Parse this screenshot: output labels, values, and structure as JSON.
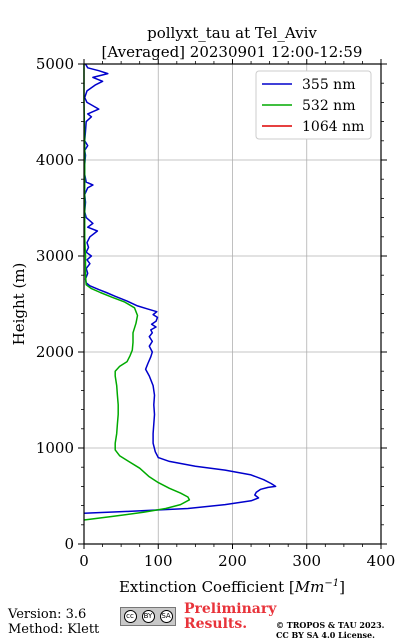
{
  "chart_data": {
    "type": "line",
    "title": "pollyxt_tau at Tel_Aviv",
    "subtitle": "[Averaged] 20230901 12:00-12:59",
    "xlabel": "Extinction Coefficient [",
    "xlabel_unit": "Mm",
    "xlabel_unit_exp": "−1",
    "xlabel_close": "]",
    "ylabel": "Height (m)",
    "xlim": [
      0,
      400
    ],
    "ylim": [
      0,
      5000
    ],
    "x_ticks": [
      0,
      100,
      200,
      300,
      400
    ],
    "y_ticks": [
      0,
      1000,
      2000,
      3000,
      4000,
      5000
    ],
    "grid": true,
    "legend_position": "top-right",
    "series": [
      {
        "name": "355 nm",
        "color": "#0000cc",
        "points": [
          [
            0,
            320
          ],
          [
            60,
            340
          ],
          [
            140,
            370
          ],
          [
            190,
            410
          ],
          [
            225,
            450
          ],
          [
            235,
            480
          ],
          [
            230,
            510
          ],
          [
            232,
            540
          ],
          [
            238,
            570
          ],
          [
            248,
            590
          ],
          [
            258,
            600
          ],
          [
            252,
            630
          ],
          [
            242,
            670
          ],
          [
            225,
            720
          ],
          [
            190,
            770
          ],
          [
            150,
            810
          ],
          [
            115,
            860
          ],
          [
            100,
            900
          ],
          [
            96,
            960
          ],
          [
            93,
            1050
          ],
          [
            93,
            1150
          ],
          [
            94,
            1250
          ],
          [
            95,
            1350
          ],
          [
            94,
            1450
          ],
          [
            95,
            1550
          ],
          [
            93,
            1650
          ],
          [
            88,
            1750
          ],
          [
            83,
            1820
          ],
          [
            86,
            1880
          ],
          [
            90,
            1950
          ],
          [
            92,
            2000
          ],
          [
            88,
            2060
          ],
          [
            92,
            2110
          ],
          [
            88,
            2160
          ],
          [
            92,
            2200
          ],
          [
            90,
            2230
          ],
          [
            97,
            2260
          ],
          [
            91,
            2290
          ],
          [
            97,
            2320
          ],
          [
            99,
            2360
          ],
          [
            93,
            2390
          ],
          [
            98,
            2420
          ],
          [
            85,
            2450
          ],
          [
            72,
            2480
          ],
          [
            58,
            2530
          ],
          [
            42,
            2580
          ],
          [
            30,
            2620
          ],
          [
            20,
            2650
          ],
          [
            8,
            2690
          ],
          [
            3,
            2720
          ],
          [
            2,
            2760
          ],
          [
            5,
            2820
          ],
          [
            3,
            2870
          ],
          [
            8,
            2920
          ],
          [
            4,
            2960
          ],
          [
            10,
            3000
          ],
          [
            3,
            3040
          ],
          [
            6,
            3090
          ],
          [
            4,
            3140
          ],
          [
            8,
            3200
          ],
          [
            18,
            3260
          ],
          [
            5,
            3300
          ],
          [
            12,
            3340
          ],
          [
            3,
            3400
          ],
          [
            1,
            3460
          ],
          [
            2,
            3560
          ],
          [
            1,
            3640
          ],
          [
            5,
            3710
          ],
          [
            12,
            3740
          ],
          [
            3,
            3770
          ],
          [
            1,
            3850
          ],
          [
            1,
            3950
          ],
          [
            2,
            4050
          ],
          [
            1,
            4100
          ],
          [
            5,
            4150
          ],
          [
            1,
            4200
          ],
          [
            2,
            4300
          ],
          [
            3,
            4400
          ],
          [
            10,
            4450
          ],
          [
            5,
            4480
          ],
          [
            20,
            4530
          ],
          [
            4,
            4600
          ],
          [
            1,
            4650
          ],
          [
            4,
            4720
          ],
          [
            15,
            4780
          ],
          [
            25,
            4820
          ],
          [
            12,
            4860
          ],
          [
            32,
            4900
          ],
          [
            20,
            4930
          ],
          [
            5,
            4960
          ],
          [
            2,
            5000
          ]
        ]
      },
      {
        "name": "532 nm",
        "color": "#00aa00",
        "points": [
          [
            0,
            250
          ],
          [
            40,
            290
          ],
          [
            80,
            330
          ],
          [
            110,
            370
          ],
          [
            130,
            410
          ],
          [
            142,
            460
          ],
          [
            140,
            490
          ],
          [
            130,
            530
          ],
          [
            115,
            580
          ],
          [
            100,
            640
          ],
          [
            88,
            700
          ],
          [
            75,
            790
          ],
          [
            60,
            860
          ],
          [
            48,
            920
          ],
          [
            42,
            980
          ],
          [
            42,
            1050
          ],
          [
            44,
            1150
          ],
          [
            45,
            1250
          ],
          [
            46,
            1350
          ],
          [
            46,
            1450
          ],
          [
            45,
            1550
          ],
          [
            44,
            1650
          ],
          [
            42,
            1750
          ],
          [
            42,
            1800
          ],
          [
            48,
            1850
          ],
          [
            58,
            1900
          ],
          [
            62,
            1960
          ],
          [
            65,
            2020
          ],
          [
            66,
            2100
          ],
          [
            66,
            2200
          ],
          [
            70,
            2300
          ],
          [
            72,
            2380
          ],
          [
            68,
            2460
          ],
          [
            55,
            2520
          ],
          [
            38,
            2570
          ],
          [
            22,
            2620
          ],
          [
            10,
            2660
          ],
          [
            3,
            2700
          ],
          [
            2,
            2800
          ],
          [
            2,
            3000
          ],
          [
            1,
            3200
          ],
          [
            1,
            3500
          ],
          [
            1,
            3800
          ],
          [
            1,
            4200
          ],
          [
            0,
            4600
          ],
          [
            0,
            5000
          ]
        ]
      },
      {
        "name": "1064 nm",
        "color": "#dd0000",
        "points": []
      }
    ]
  },
  "footer": {
    "version": "Version: 3.6",
    "method": "Method: Klett",
    "license_logo": "cc-by-sa-logo",
    "license_text": [
      "cc",
      "BY",
      "SA"
    ],
    "preliminary_line1": "Preliminary",
    "preliminary_line2": "Results.",
    "copyright_line1": "© TROPOS & TAU 2023.",
    "copyright_line2": "CC BY SA 4.0 License."
  }
}
